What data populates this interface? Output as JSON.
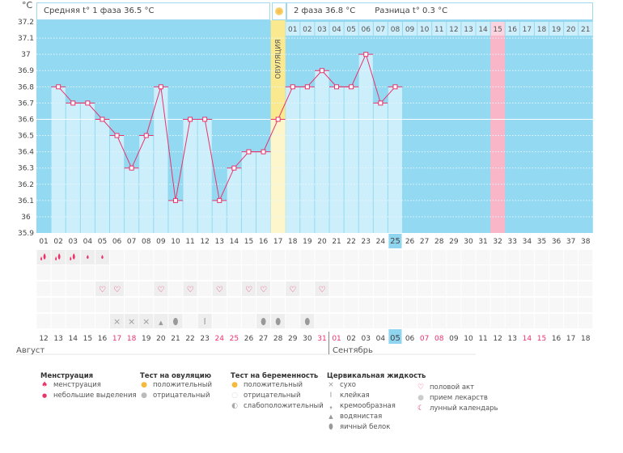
{
  "unit": "°C",
  "header": {
    "phase1": "Средняя t° 1 фаза 36.5 °C",
    "phase2": "2 фаза 36.8 °C",
    "diff": "Разница t° 0.3 °C",
    "ovulation_label": "ОВУЛЯЦИЯ"
  },
  "colors": {
    "plot_bg": "#93d9f2",
    "bar": "#cdeefb",
    "line": "#e8336b",
    "ovulation": "#fbe98f",
    "expected": "#f9b6c8",
    "today": "#8fd5f0"
  },
  "chart_data": {
    "type": "line",
    "ylim": [
      35.9,
      37.2
    ],
    "yticks": [
      "37.2",
      "37.1",
      "37",
      "36.9",
      "36.8",
      "36.7",
      "36.6",
      "36.5",
      "36.4",
      "36.3",
      "36.2",
      "36.1",
      "36",
      "35.9"
    ],
    "cycle_days": [
      "01",
      "02",
      "03",
      "04",
      "05",
      "06",
      "07",
      "08",
      "09",
      "10",
      "11",
      "12",
      "13",
      "14",
      "15",
      "16",
      "17",
      "18",
      "19",
      "20",
      "21",
      "22",
      "23",
      "24",
      "25",
      "26",
      "27",
      "28",
      "29",
      "30",
      "31",
      "32",
      "33",
      "34",
      "35",
      "36",
      "37",
      "38"
    ],
    "temperatures": [
      null,
      36.8,
      36.7,
      36.7,
      36.6,
      36.5,
      36.3,
      36.5,
      36.8,
      36.1,
      36.6,
      36.6,
      36.1,
      36.3,
      36.4,
      36.4,
      36.6,
      36.8,
      36.8,
      36.9,
      36.8,
      36.8,
      37.0,
      36.7,
      36.8,
      null,
      null,
      null,
      null,
      null,
      null,
      null,
      null,
      null,
      null,
      null,
      null,
      null
    ],
    "ovulation_day": 17,
    "current_day": 25,
    "expected_day": 32,
    "phase2_days": [
      "01",
      "02",
      "03",
      "04",
      "05",
      "06",
      "07",
      "08",
      "09",
      "10",
      "11",
      "12",
      "13",
      "14",
      "15",
      "16",
      "17",
      "18",
      "19",
      "20",
      "21"
    ],
    "dates": [
      "12",
      "13",
      "14",
      "15",
      "16",
      "17",
      "18",
      "19",
      "20",
      "21",
      "22",
      "23",
      "24",
      "25",
      "26",
      "27",
      "28",
      "29",
      "30",
      "31",
      "01",
      "02",
      "03",
      "04",
      "05",
      "06",
      "07",
      "08",
      "09",
      "10",
      "11",
      "12",
      "13",
      "14",
      "15",
      "16",
      "17",
      "18"
    ],
    "weekend_dates_idx": [
      5,
      6,
      12,
      13,
      19,
      20,
      26,
      27,
      33,
      34
    ],
    "months": [
      {
        "label": "Август",
        "start": 0
      },
      {
        "label": "Сентябрь",
        "start": 20
      }
    ],
    "menstruation": {
      "1": "heavy",
      "2": "heavy",
      "3": "heavy",
      "4": "light",
      "5": "light"
    },
    "intercourse_days": [
      5,
      6,
      9,
      11,
      13,
      15,
      16,
      18,
      20
    ],
    "cervical": {
      "6": "dry",
      "7": "dry",
      "8": "dry",
      "9": "watery",
      "10": "egg-white",
      "12": "sticky",
      "16": "egg-white",
      "17": "egg-white",
      "19": "egg-white"
    }
  },
  "legend": {
    "menstruation": {
      "title": "Менструация",
      "items": [
        "менструация",
        "небольшие выделения"
      ]
    },
    "ovulation_test": {
      "title": "Тест на овуляцию",
      "items": [
        "положительный",
        "отрицательный"
      ]
    },
    "pregnancy_test": {
      "title": "Тест на беременность",
      "items": [
        "положительный",
        "отрицательный",
        "слабоположительный"
      ]
    },
    "cervical": {
      "title": "Цервикальная жидкость",
      "items": [
        "сухо",
        "клейкая",
        "кремообразная",
        "водянистая",
        "яичный белок"
      ]
    },
    "other": {
      "items": [
        "половой акт",
        "прием лекарств",
        "лунный календарь"
      ]
    }
  }
}
